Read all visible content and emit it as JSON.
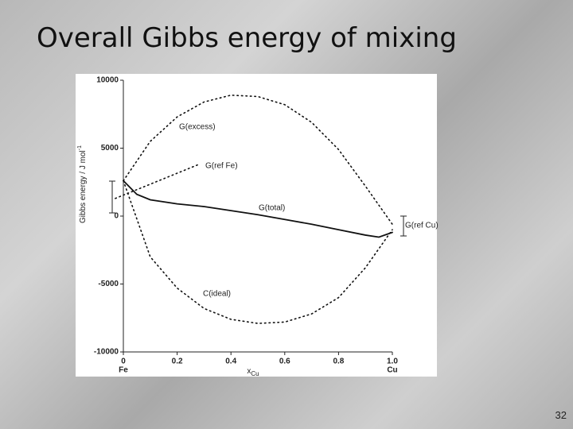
{
  "slide": {
    "title": "Overall Gibbs energy of mixing",
    "page_number": "32"
  },
  "chart_data": {
    "type": "line",
    "xlabel": "x",
    "xlabel_sub": "Cu",
    "ylabel": "Gibbs energy / J mol",
    "ylabel_sup": "-1",
    "xlim": [
      0,
      1
    ],
    "xticks": [
      0,
      0.2,
      0.4,
      0.6,
      0.8,
      {
        "value": 1,
        "label": "1.0"
      }
    ],
    "x_end_labels": [
      "Fe",
      "Cu"
    ],
    "ylim": [
      -10000,
      10000
    ],
    "yticks": [
      -10000,
      -5000,
      0,
      5000,
      10000
    ],
    "series": [
      {
        "name": "G(excess)",
        "color": "#111111",
        "style": "dotted",
        "x": [
          0,
          0.1,
          0.2,
          0.3,
          0.4,
          0.5,
          0.6,
          0.7,
          0.8,
          0.9,
          1
        ],
        "values": [
          2600,
          5500,
          7300,
          8400,
          8900,
          8800,
          8200,
          6900,
          4900,
          2200,
          -600
        ]
      },
      {
        "name": "G(ref Fe)",
        "color": "#111111",
        "style": "dotted",
        "x": [
          -0.03,
          0.28
        ],
        "values": [
          1300,
          3800
        ]
      },
      {
        "name": "G(total)",
        "color": "#111111",
        "style": "solid",
        "x": [
          0,
          0.05,
          0.1,
          0.2,
          0.3,
          0.4,
          0.5,
          0.6,
          0.7,
          0.8,
          0.9,
          0.95,
          1
        ],
        "values": [
          2600,
          1600,
          1200,
          900,
          700,
          400,
          100,
          -250,
          -600,
          -1000,
          -1400,
          -1550,
          -1200
        ]
      },
      {
        "name": "C(ideal)",
        "color": "#111111",
        "style": "dotted",
        "x": [
          0,
          0.1,
          0.2,
          0.3,
          0.4,
          0.5,
          0.6,
          0.7,
          0.8,
          0.9,
          1
        ],
        "values": [
          2600,
          -3000,
          -5300,
          -6800,
          -7600,
          -7900,
          -7800,
          -7200,
          -6000,
          -3800,
          -1000
        ]
      }
    ],
    "annotations": [
      "G(ref Cu)"
    ]
  }
}
